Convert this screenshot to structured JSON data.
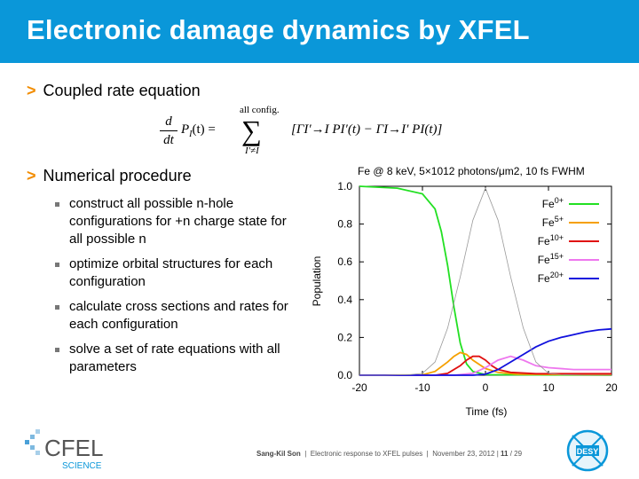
{
  "slide": {
    "title": "Electronic damage dynamics by XFEL",
    "section1": "Coupled rate equation",
    "section2": "Numerical procedure",
    "equation": {
      "lhs": "P",
      "lhs_sub": "I",
      "lhs_arg": "(t) =",
      "sum_over": "all config.",
      "sum_under": "I′≠I",
      "rhs": "[ΓI′→I PI′(t) − ΓI→I′ PI(t)]",
      "frac_num": "d",
      "frac_den": "dt"
    },
    "bullets": [
      "construct all possible n-hole configurations for +n charge state for all possible n",
      "optimize orbital structures for each configuration",
      "calculate cross sections and rates for each configuration",
      "solve a set of rate equations with all parameters"
    ],
    "bullet_marks": [
      "▪",
      "▪",
      "▪",
      "▪"
    ]
  },
  "footer": {
    "author": "Sang-Kil Son",
    "talk": "Electronic response to XFEL pulses",
    "date": "November 23, 2012",
    "page": "11",
    "total": "29",
    "logo_left": "CFEL",
    "logo_left_sub": "SCIENCE",
    "logo_right": "DESY"
  },
  "colors": {
    "header": "#0a97d9",
    "arrow": "#f28c00",
    "fe0": "#22e022",
    "fe5": "#f5a000",
    "fe10": "#e01010",
    "fe15": "#ee77ee",
    "fe20": "#1111dd"
  },
  "chart_data": {
    "type": "line",
    "title": "Fe @ 8 keV, 5×1012 photons/μm2, 10 fs FWHM",
    "xlabel": "Time (fs)",
    "ylabel": "Population",
    "xlim": [
      -20,
      20
    ],
    "ylim": [
      0,
      1.0
    ],
    "xticks": [
      "-20",
      "-10",
      "0",
      "10",
      "20"
    ],
    "yticks": [
      "0.0",
      "0.2",
      "0.4",
      "0.6",
      "0.8",
      "1.0"
    ],
    "legend_placement": "top-right",
    "series": [
      {
        "name": "Fe0+",
        "color": "#22e022",
        "x": [
          -20,
          -14,
          -10,
          -8,
          -7,
          -6,
          -5,
          -4,
          -3,
          -2,
          0,
          20
        ],
        "y": [
          1.0,
          0.99,
          0.96,
          0.88,
          0.76,
          0.58,
          0.36,
          0.17,
          0.06,
          0.02,
          0.003,
          0.0
        ]
      },
      {
        "name": "Fe5+",
        "color": "#f5a000",
        "x": [
          -20,
          -10,
          -8,
          -6,
          -5,
          -4,
          -3,
          -2,
          0,
          2,
          5,
          20
        ],
        "y": [
          0,
          0.002,
          0.02,
          0.07,
          0.1,
          0.12,
          0.11,
          0.08,
          0.035,
          0.015,
          0.005,
          0.002
        ]
      },
      {
        "name": "Fe10+",
        "color": "#e01010",
        "x": [
          -20,
          -8,
          -6,
          -4,
          -3,
          -2,
          -1,
          0,
          1,
          2,
          4,
          8,
          20
        ],
        "y": [
          0,
          0.0,
          0.01,
          0.05,
          0.08,
          0.1,
          0.1,
          0.08,
          0.05,
          0.03,
          0.015,
          0.008,
          0.008
        ]
      },
      {
        "name": "Fe15+",
        "color": "#ee77ee",
        "x": [
          -20,
          -5,
          -2,
          0,
          2,
          4,
          6,
          8,
          10,
          14,
          20
        ],
        "y": [
          0,
          0,
          0.01,
          0.04,
          0.08,
          0.1,
          0.08,
          0.05,
          0.04,
          0.03,
          0.03
        ]
      },
      {
        "name": "Fe20+",
        "color": "#1111dd",
        "x": [
          -20,
          -2,
          0,
          2,
          4,
          6,
          8,
          10,
          12,
          14,
          16,
          18,
          20
        ],
        "y": [
          0,
          0,
          0.005,
          0.03,
          0.07,
          0.11,
          0.15,
          0.18,
          0.2,
          0.215,
          0.23,
          0.24,
          0.245
        ]
      },
      {
        "name": "",
        "color": "#999999",
        "x": [
          -20,
          -16,
          -12,
          -10,
          -8,
          -6,
          -4,
          -2,
          0,
          2,
          4,
          6,
          8,
          10,
          12,
          16,
          20
        ],
        "y": [
          0,
          0.0,
          0.003,
          0.01,
          0.07,
          0.25,
          0.52,
          0.82,
          0.99,
          0.82,
          0.52,
          0.25,
          0.07,
          0.01,
          0.003,
          0,
          0
        ]
      }
    ]
  }
}
